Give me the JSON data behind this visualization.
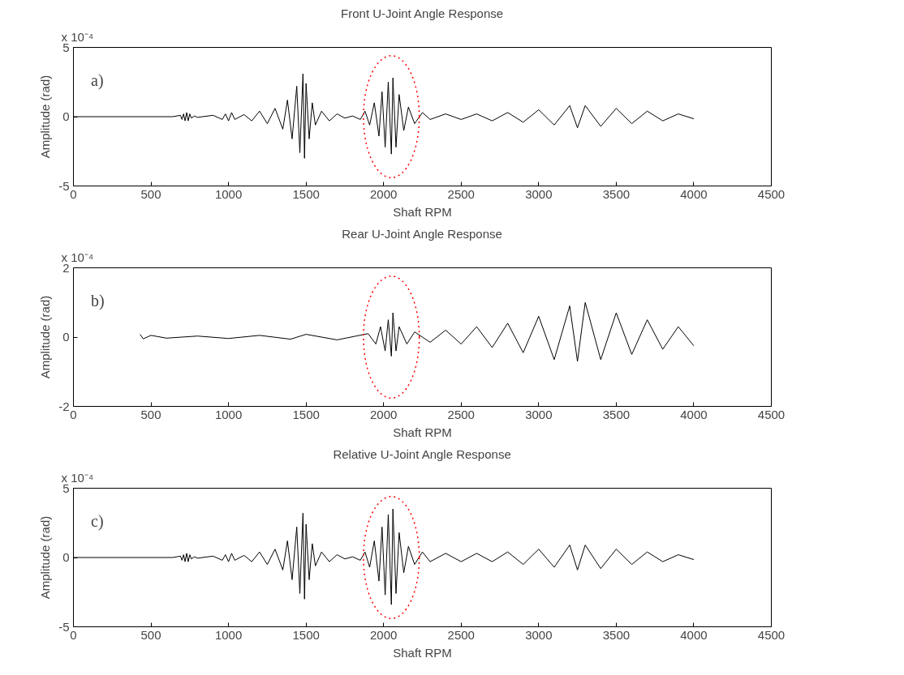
{
  "chart_data": [
    {
      "type": "line",
      "title": "Front U-Joint Angle Response",
      "xlabel": "Shaft RPM",
      "ylabel": "Amplitude (rad)",
      "annotations": [
        "x 10⁻⁴",
        "a)"
      ],
      "xlim": [
        0,
        4500
      ],
      "xticks": [
        0,
        500,
        1000,
        1500,
        2000,
        2500,
        3000,
        3500,
        4000,
        4500
      ],
      "ylim": [
        -5,
        5
      ],
      "yticks": [
        -5,
        0,
        5
      ],
      "grid": false,
      "marker": "none",
      "line_style": "solid",
      "series": [
        {
          "color": "#000000",
          "x": [
            0,
            640,
            690,
            700,
            710,
            720,
            730,
            740,
            750,
            760,
            780,
            800,
            900,
            960,
            980,
            1000,
            1020,
            1040,
            1100,
            1150,
            1200,
            1250,
            1300,
            1350,
            1380,
            1410,
            1440,
            1460,
            1480,
            1490,
            1500,
            1520,
            1540,
            1560,
            1600,
            1650,
            1700,
            1750,
            1800,
            1850,
            1880,
            1910,
            1940,
            1970,
            1990,
            2010,
            2030,
            2050,
            2060,
            2080,
            2100,
            2130,
            2160,
            2200,
            2250,
            2300,
            2400,
            2500,
            2600,
            2700,
            2800,
            2900,
            3000,
            3100,
            3200,
            3250,
            3300,
            3400,
            3500,
            3600,
            3700,
            3800,
            3900,
            4000
          ],
          "values": [
            0,
            0,
            0.1,
            -0.2,
            0.2,
            -0.3,
            0.3,
            -0.3,
            0.2,
            -0.1,
            0.05,
            -0.05,
            0.1,
            -0.2,
            0.2,
            -0.3,
            0.3,
            -0.2,
            0.15,
            -0.3,
            0.4,
            -0.5,
            0.6,
            -0.9,
            1.2,
            -1.6,
            2.2,
            -2.6,
            3.1,
            -3.0,
            2.4,
            -1.6,
            1.0,
            -0.6,
            0.4,
            -0.3,
            0.2,
            -0.1,
            0.05,
            -0.2,
            0.4,
            -0.6,
            1.0,
            -1.4,
            1.8,
            -2.2,
            2.5,
            -2.7,
            2.8,
            -2.2,
            1.6,
            -1.0,
            0.7,
            -0.5,
            0.3,
            -0.2,
            0.2,
            -0.2,
            0.2,
            -0.3,
            0.3,
            -0.4,
            0.5,
            -0.6,
            0.8,
            -0.8,
            0.8,
            -0.7,
            0.6,
            -0.5,
            0.4,
            -0.3,
            0.2,
            -0.15
          ]
        }
      ]
    },
    {
      "type": "line",
      "title": "Rear U-Joint Angle Response",
      "xlabel": "Shaft RPM",
      "ylabel": "Amplitude (rad)",
      "annotations": [
        "x 10⁻⁴",
        "b)"
      ],
      "xlim": [
        0,
        4500
      ],
      "xticks": [
        0,
        500,
        1000,
        1500,
        2000,
        2500,
        3000,
        3500,
        4000,
        4500
      ],
      "ylim": [
        -2,
        2
      ],
      "yticks": [
        -2,
        0,
        2
      ],
      "grid": false,
      "marker": "none",
      "line_style": "solid",
      "series": [
        {
          "color": "#000000",
          "x": [
            430,
            450,
            500,
            600,
            800,
            1000,
            1200,
            1400,
            1500,
            1700,
            1900,
            1950,
            1980,
            2010,
            2030,
            2050,
            2060,
            2080,
            2100,
            2150,
            2200,
            2300,
            2400,
            2500,
            2600,
            2700,
            2800,
            2900,
            3000,
            3100,
            3200,
            3250,
            3300,
            3400,
            3500,
            3600,
            3700,
            3800,
            3900,
            4000
          ],
          "values": [
            0.08,
            -0.05,
            0.05,
            -0.03,
            0.03,
            -0.04,
            0.05,
            -0.06,
            0.08,
            -0.08,
            0.1,
            -0.2,
            0.3,
            -0.4,
            0.5,
            -0.55,
            0.7,
            -0.4,
            0.3,
            -0.2,
            0.15,
            -0.15,
            0.2,
            -0.2,
            0.3,
            -0.3,
            0.4,
            -0.45,
            0.6,
            -0.65,
            0.9,
            -0.7,
            1.0,
            -0.65,
            0.7,
            -0.5,
            0.5,
            -0.35,
            0.3,
            -0.25
          ]
        }
      ]
    },
    {
      "type": "line",
      "title": "Relative U-Joint Angle Response",
      "xlabel": "Shaft RPM",
      "ylabel": "Amplitude (rad)",
      "annotations": [
        "x 10⁻⁴",
        "c)"
      ],
      "xlim": [
        0,
        4500
      ],
      "xticks": [
        0,
        500,
        1000,
        1500,
        2000,
        2500,
        3000,
        3500,
        4000,
        4500
      ],
      "ylim": [
        -5,
        5
      ],
      "yticks": [
        -5,
        0,
        5
      ],
      "grid": false,
      "marker": "none",
      "line_style": "solid",
      "series": [
        {
          "color": "#000000",
          "x": [
            0,
            640,
            690,
            700,
            710,
            720,
            730,
            740,
            750,
            760,
            780,
            800,
            900,
            960,
            980,
            1000,
            1020,
            1040,
            1100,
            1150,
            1200,
            1250,
            1300,
            1350,
            1380,
            1410,
            1440,
            1460,
            1480,
            1490,
            1500,
            1520,
            1540,
            1560,
            1600,
            1650,
            1700,
            1750,
            1800,
            1850,
            1880,
            1910,
            1940,
            1970,
            1990,
            2010,
            2030,
            2050,
            2060,
            2080,
            2100,
            2130,
            2160,
            2200,
            2250,
            2300,
            2400,
            2500,
            2600,
            2700,
            2800,
            2900,
            3000,
            3100,
            3200,
            3250,
            3300,
            3400,
            3500,
            3600,
            3700,
            3800,
            3900,
            4000
          ],
          "values": [
            0,
            0,
            0.1,
            -0.2,
            0.2,
            -0.3,
            0.3,
            -0.3,
            0.2,
            -0.1,
            0.05,
            -0.05,
            0.1,
            -0.2,
            0.2,
            -0.3,
            0.3,
            -0.2,
            0.15,
            -0.3,
            0.4,
            -0.5,
            0.6,
            -0.9,
            1.2,
            -1.6,
            2.2,
            -2.6,
            3.2,
            -3.0,
            2.4,
            -1.6,
            1.0,
            -0.6,
            0.4,
            -0.3,
            0.2,
            -0.1,
            0.05,
            -0.2,
            0.4,
            -0.7,
            1.2,
            -1.7,
            2.2,
            -2.7,
            3.1,
            -3.4,
            3.5,
            -2.6,
            1.8,
            -1.1,
            0.8,
            -0.5,
            0.4,
            -0.3,
            0.3,
            -0.3,
            0.3,
            -0.3,
            0.4,
            -0.5,
            0.6,
            -0.7,
            0.9,
            -0.9,
            0.9,
            -0.8,
            0.6,
            -0.5,
            0.4,
            -0.3,
            0.2,
            -0.15
          ]
        }
      ]
    }
  ]
}
